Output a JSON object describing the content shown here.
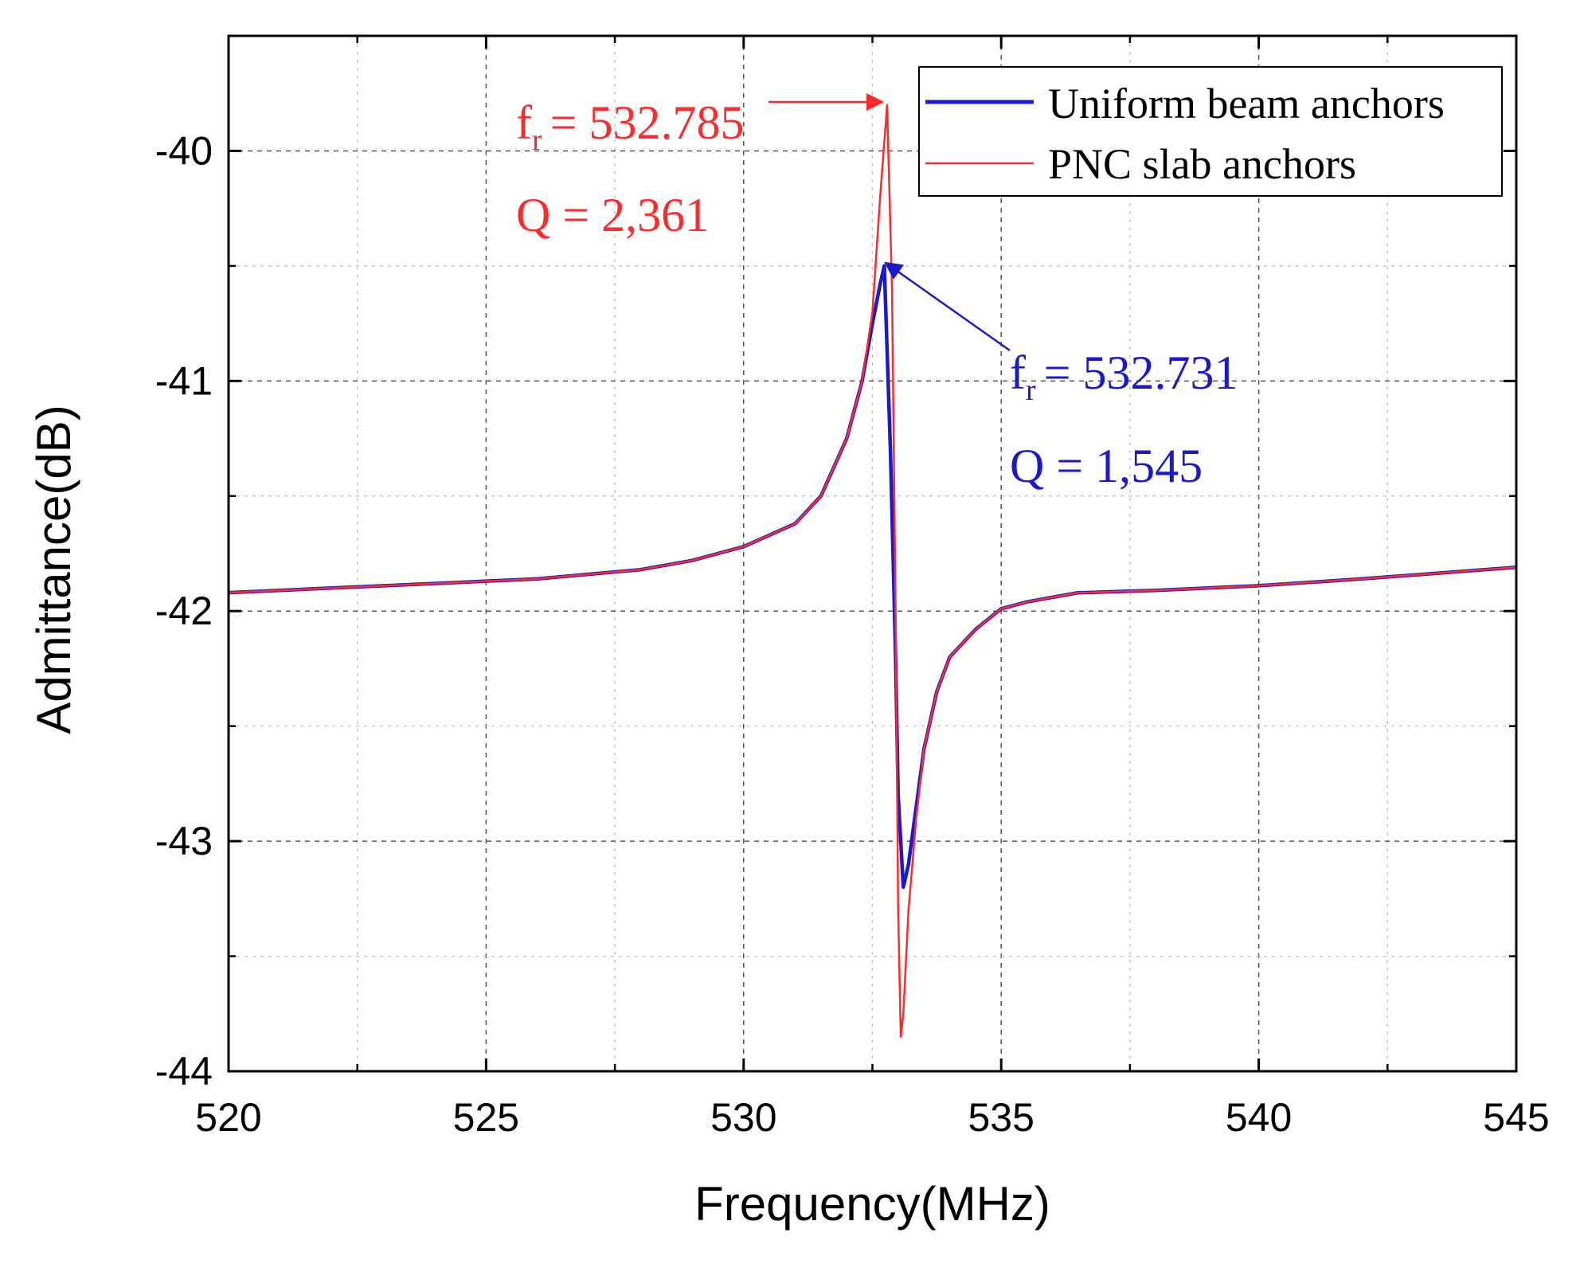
{
  "chart_data": {
    "type": "line",
    "title": "",
    "xlabel": "Frequency(MHz)",
    "ylabel": "Admittance(dB)",
    "xlim": [
      520,
      545
    ],
    "ylim": [
      -44,
      -39.5
    ],
    "xticks": [
      520,
      525,
      530,
      535,
      540,
      545
    ],
    "xtick_labels": [
      "520",
      "525",
      "530",
      "535",
      "540",
      "545"
    ],
    "yticks": [
      -44,
      -43,
      -42,
      -41,
      -40
    ],
    "ytick_labels": [
      "-44",
      "-43",
      "-42",
      "-41",
      "-40"
    ],
    "grid": true,
    "legend_position": "top-right",
    "series": [
      {
        "name": "Uniform beam anchors",
        "color": "#1a1acc",
        "x": [
          520,
          522,
          524,
          526,
          528,
          529,
          530,
          531,
          531.5,
          532,
          532.3,
          532.5,
          532.65,
          532.731,
          532.85,
          532.95,
          533.0,
          533.1,
          533.2,
          533.35,
          533.5,
          533.75,
          534.0,
          534.5,
          535.0,
          535.5,
          536.0,
          536.5,
          536.6,
          538,
          540,
          542,
          545
        ],
        "values": [
          -41.92,
          -41.9,
          -41.88,
          -41.86,
          -41.82,
          -41.78,
          -41.72,
          -41.62,
          -41.5,
          -41.25,
          -41.0,
          -40.75,
          -40.58,
          -40.5,
          -41.3,
          -42.2,
          -42.8,
          -43.2,
          -43.1,
          -42.85,
          -42.6,
          -42.35,
          -42.2,
          -42.08,
          -41.99,
          -41.96,
          -41.94,
          -41.92,
          -41.92,
          -41.91,
          -41.89,
          -41.86,
          -41.81
        ]
      },
      {
        "name": "PNC slab anchors",
        "color": "#ff2a2a",
        "x": [
          520,
          522,
          524,
          526,
          528,
          529,
          530,
          531,
          531.5,
          532,
          532.3,
          532.5,
          532.65,
          532.785,
          532.88,
          532.95,
          533.0,
          533.05,
          533.1,
          533.2,
          533.35,
          533.5,
          533.75,
          534.0,
          534.5,
          535.0,
          535.5,
          536.0,
          536.5,
          536.6,
          538,
          540,
          542,
          545
        ],
        "values": [
          -41.92,
          -41.9,
          -41.88,
          -41.86,
          -41.82,
          -41.78,
          -41.72,
          -41.62,
          -41.5,
          -41.25,
          -41.0,
          -40.7,
          -40.2,
          -39.8,
          -40.6,
          -42.0,
          -43.3,
          -43.85,
          -43.75,
          -43.3,
          -42.9,
          -42.6,
          -42.35,
          -42.2,
          -42.08,
          -41.99,
          -41.96,
          -41.94,
          -41.92,
          -41.92,
          -41.91,
          -41.89,
          -41.86,
          -41.81
        ]
      }
    ],
    "annotations": [
      {
        "series": "PNC slab anchors",
        "f_prefix": "f",
        "f_sub": "r",
        "f_value": "= 532.785",
        "q_text": "Q = 2,361",
        "color": "#ff2a2a",
        "peak_x": 532.785,
        "peak_y": -39.8
      },
      {
        "series": "Uniform beam anchors",
        "f_prefix": "f",
        "f_sub": "r",
        "f_value": "= 532.731",
        "q_text": "Q = 1,545",
        "color": "#1a1acc",
        "peak_x": 532.731,
        "peak_y": -40.5
      }
    ]
  }
}
